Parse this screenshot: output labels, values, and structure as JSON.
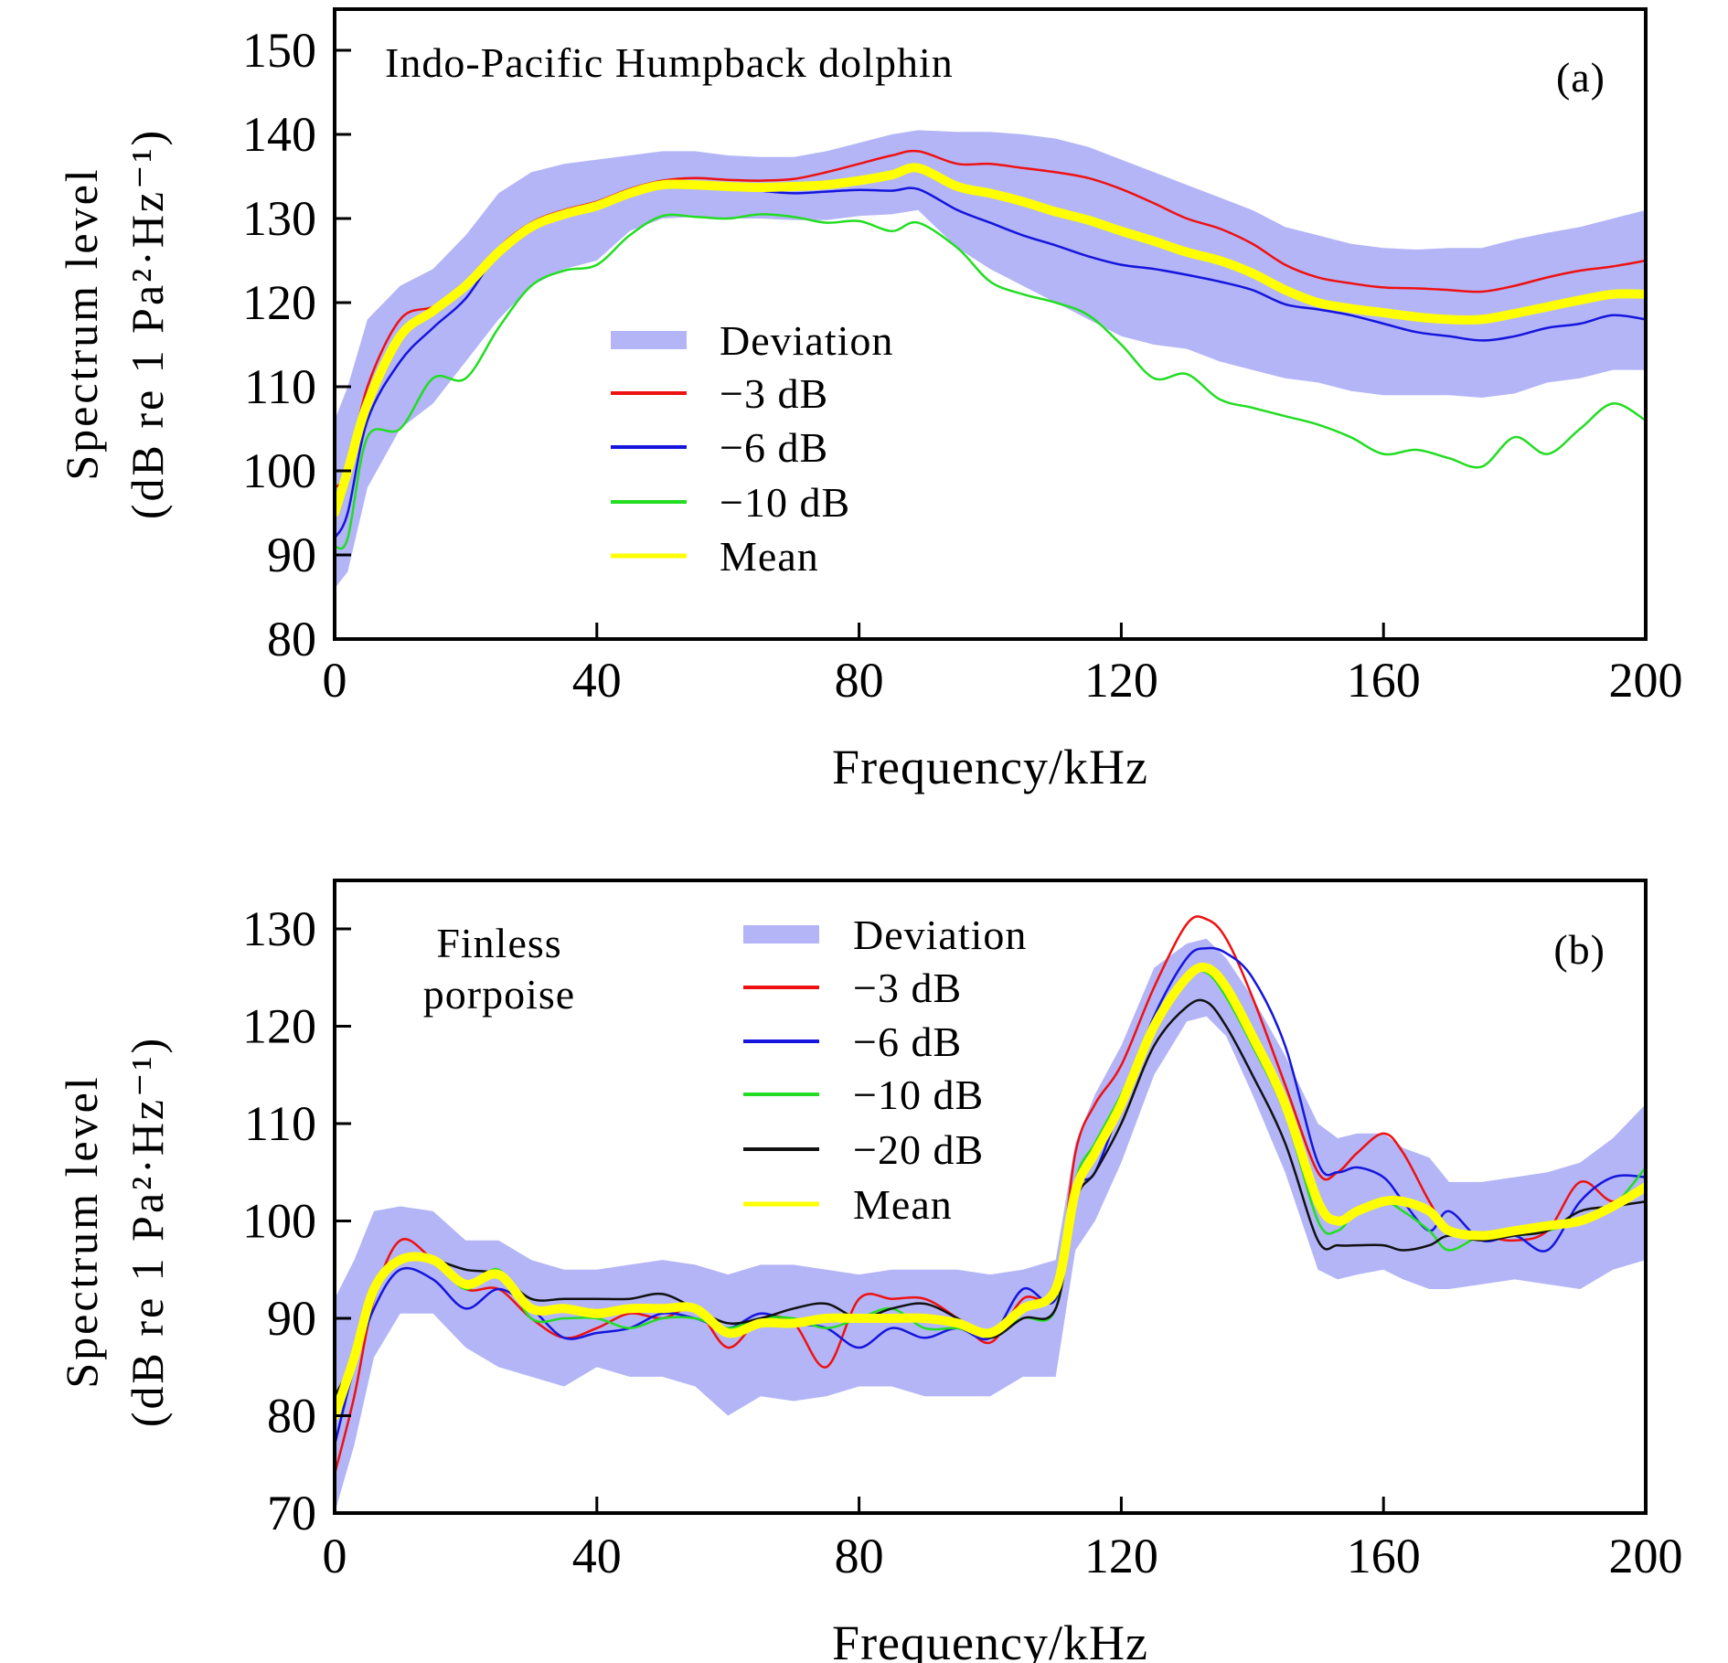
{
  "chart_data": [
    {
      "type": "line",
      "panel_label": "(a)",
      "annotation": "Indo-Pacific Humpback dolphin",
      "xlabel": "Frequency/kHz",
      "ylabel_line1": "Spectrum level",
      "ylabel_line2": "(dB re 1 Pa²·Hz⁻¹)",
      "xlim": [
        0,
        200
      ],
      "ylim": [
        80,
        150
      ],
      "xticks": [
        0,
        40,
        80,
        120,
        160,
        200
      ],
      "yticks": [
        80,
        90,
        100,
        110,
        120,
        130,
        140,
        150
      ],
      "grid": false,
      "legend_placement": "center-left",
      "x": [
        0,
        2,
        5,
        10,
        15,
        20,
        25,
        30,
        35,
        40,
        45,
        50,
        55,
        60,
        65,
        70,
        75,
        80,
        85,
        89,
        95,
        100,
        105,
        110,
        115,
        120,
        125,
        130,
        135,
        140,
        145,
        150,
        155,
        160,
        165,
        170,
        175,
        180,
        185,
        190,
        195,
        200
      ],
      "band": {
        "name": "Deviation",
        "color": "#b3b5f7",
        "upper": [
          106,
          110,
          118,
          122,
          124,
          128,
          133,
          135.5,
          136.5,
          137,
          137.5,
          138,
          138,
          137.5,
          137.3,
          137.3,
          138,
          139,
          140,
          140.5,
          140.3,
          140.3,
          140,
          139.5,
          138.5,
          137,
          135.5,
          134,
          132.5,
          131,
          129,
          128,
          127,
          126.5,
          126.3,
          126.5,
          126.5,
          127.5,
          128.3,
          129,
          130,
          131
        ],
        "lower": [
          86,
          88,
          98,
          105,
          108,
          113,
          118,
          122,
          124,
          125,
          128.5,
          130,
          130.2,
          130,
          130,
          129.8,
          129.8,
          130.3,
          130.5,
          131,
          126.5,
          124,
          122,
          120,
          118,
          116,
          115,
          114.5,
          113,
          112,
          111,
          110.5,
          109.5,
          109,
          109,
          109,
          108.7,
          109.2,
          110.5,
          111,
          112,
          112
        ]
      },
      "series": [
        {
          "name": "−3 dB",
          "color": "#ee1111",
          "width": 2.5,
          "values": [
            98,
            100,
            110,
            118,
            119.5,
            121.5,
            126.5,
            129.5,
            131,
            132,
            133.5,
            134.5,
            134.8,
            134.6,
            134.5,
            134.7,
            135.5,
            136.5,
            137.5,
            138,
            136.5,
            136.5,
            136,
            135.5,
            134.8,
            133.5,
            131.8,
            130,
            128.8,
            127,
            124.5,
            123,
            122.3,
            121.8,
            121.7,
            121.5,
            121.3,
            122,
            123,
            123.8,
            124.3,
            125
          ]
        },
        {
          "name": "−6 dB",
          "color": "#1515dd",
          "width": 2.5,
          "values": [
            92,
            95,
            106,
            113,
            117,
            120.5,
            126,
            129,
            130.5,
            131.5,
            133,
            134,
            134,
            133.8,
            133.3,
            133,
            133.2,
            133.4,
            133.3,
            133.5,
            131,
            129.5,
            128,
            126.8,
            125.5,
            124.5,
            124,
            123.3,
            122.5,
            121.5,
            119.8,
            119.2,
            118.5,
            117.5,
            116.5,
            116,
            115.5,
            116,
            117,
            117.5,
            118.5,
            118
          ]
        },
        {
          "name": "−10 dB",
          "color": "#22dd22",
          "width": 2.5,
          "values": [
            91,
            92,
            104,
            105,
            111,
            111,
            117,
            122,
            123.8,
            124.5,
            128,
            130.3,
            130.2,
            130,
            130.5,
            130.2,
            129.5,
            129.7,
            128.5,
            129.5,
            126.5,
            122.5,
            121,
            120,
            118.5,
            115,
            111,
            111.5,
            108.5,
            107.5,
            106.5,
            105.5,
            104,
            102,
            102.5,
            101.5,
            100.5,
            104,
            102,
            105,
            108,
            106
          ]
        },
        {
          "name": "Mean",
          "color": "#ffff00",
          "width": 10,
          "values": [
            95,
            100,
            108,
            116,
            119,
            122,
            126,
            129,
            130.5,
            131.5,
            133,
            134,
            134,
            133.8,
            133.7,
            133.8,
            134,
            134.5,
            135.2,
            136,
            133.8,
            133,
            132,
            130.8,
            129.8,
            128.5,
            127.3,
            126,
            125,
            123.5,
            121.5,
            120,
            119.3,
            118.8,
            118.3,
            118,
            118,
            118.7,
            119.5,
            120.3,
            121,
            121
          ]
        }
      ]
    },
    {
      "type": "line",
      "panel_label": "(b)",
      "annotation_line1": "Finless",
      "annotation_line2": "porpoise",
      "xlabel": "Frequency/kHz",
      "ylabel_line1": "Spectrum level",
      "ylabel_line2": "(dB re 1 Pa²·Hz⁻¹)",
      "xlim": [
        0,
        200
      ],
      "ylim": [
        70,
        135
      ],
      "xticks": [
        0,
        40,
        80,
        120,
        160,
        200
      ],
      "yticks": [
        70,
        80,
        90,
        100,
        110,
        120,
        130
      ],
      "grid": false,
      "legend_placement": "top-center",
      "x": [
        0,
        3,
        6,
        10,
        15,
        20,
        25,
        30,
        35,
        40,
        45,
        50,
        55,
        60,
        65,
        70,
        75,
        80,
        85,
        90,
        95,
        100,
        105,
        110,
        113,
        116,
        120,
        125,
        130,
        133,
        136,
        140,
        145,
        150,
        153,
        156,
        160,
        163,
        167,
        170,
        175,
        180,
        185,
        190,
        195,
        200
      ],
      "band": {
        "name": "Deviation",
        "color": "#b3b5f7",
        "upper": [
          92,
          96,
          101,
          101.5,
          101,
          98,
          98,
          96,
          95,
          95,
          95.5,
          96,
          95.5,
          94.5,
          95.5,
          95.5,
          95,
          94.5,
          95,
          95,
          95,
          94.5,
          95,
          96,
          108,
          113,
          118,
          126,
          128.5,
          129,
          127,
          123,
          117,
          110,
          108.5,
          109,
          109,
          107.5,
          106.5,
          104,
          104,
          104.5,
          105,
          106,
          108.5,
          112
        ],
        "lower": [
          70,
          77,
          86,
          90.5,
          90.5,
          87,
          85,
          84,
          83,
          85,
          84,
          84,
          83,
          80,
          82,
          81.5,
          82,
          83,
          83,
          82,
          82,
          82,
          84,
          84,
          97,
          100,
          106,
          115,
          120.5,
          121,
          119,
          113,
          105,
          95,
          94,
          94.5,
          95,
          94,
          93,
          93,
          93.5,
          94,
          93.5,
          93,
          95,
          96
        ]
      },
      "series": [
        {
          "name": "−3 dB",
          "color": "#ee1111",
          "width": 2.5,
          "values": [
            74,
            82,
            92,
            98,
            96,
            93,
            93,
            90,
            88,
            89,
            90.5,
            90,
            91,
            87,
            90,
            89.5,
            85,
            92,
            92,
            92,
            90,
            87.5,
            92,
            93,
            107,
            112,
            116,
            124,
            130.5,
            131,
            129,
            123,
            114,
            105,
            105,
            107,
            109,
            107,
            102,
            99,
            98.5,
            98,
            99,
            104,
            102,
            103.5
          ]
        },
        {
          "name": "−6 dB",
          "color": "#1515dd",
          "width": 2.5,
          "values": [
            77,
            85,
            91,
            95,
            94,
            91,
            93,
            91,
            88,
            88.5,
            89,
            90.5,
            90,
            89,
            90.5,
            89.5,
            89,
            87,
            89,
            88,
            89,
            88,
            93,
            92,
            103,
            105,
            112,
            121,
            127,
            128,
            127.5,
            125,
            118,
            106,
            105,
            105.5,
            104.5,
            102,
            99,
            101,
            98,
            98.5,
            97,
            102,
            104.5,
            104.5
          ]
        },
        {
          "name": "−10 dB",
          "color": "#22dd22",
          "width": 2.5,
          "values": [
            81,
            86,
            93,
            96,
            96,
            93,
            95,
            90,
            90,
            90,
            89,
            90,
            90,
            89,
            90,
            90,
            89,
            90,
            91,
            89,
            89,
            88.5,
            90,
            91,
            104,
            108,
            113,
            120,
            125,
            125.5,
            123,
            118,
            111,
            100,
            99,
            101,
            102,
            101,
            99,
            97,
            98.5,
            98.5,
            99,
            100,
            101.5,
            105.5
          ]
        },
        {
          "name": "−20 dB",
          "color": "#111111",
          "width": 2.5,
          "values": [
            82,
            86,
            93,
            96,
            96,
            95,
            94.5,
            92,
            92,
            92,
            92,
            92.5,
            91,
            89.5,
            90,
            91,
            91.5,
            90,
            91,
            91.5,
            90,
            88,
            90,
            91,
            102,
            105,
            110,
            118,
            122,
            122.5,
            120,
            115,
            108,
            98,
            97.5,
            97.5,
            97.5,
            97,
            97.5,
            98.5,
            98,
            98.5,
            99,
            101,
            101.5,
            102
          ]
        },
        {
          "name": "Mean",
          "color": "#ffff00",
          "width": 10,
          "values": [
            80,
            86,
            93,
            96,
            96,
            93.5,
            94.5,
            91,
            91,
            90.5,
            91,
            91,
            91,
            88.5,
            89.5,
            89.5,
            90,
            90,
            90,
            90,
            89.5,
            88.5,
            91,
            93,
            103,
            107,
            112,
            120,
            125,
            126,
            124,
            119,
            112,
            102,
            100,
            101,
            102,
            102,
            101,
            99,
            98.5,
            99,
            99.5,
            100,
            101.5,
            103.5
          ]
        }
      ]
    }
  ]
}
